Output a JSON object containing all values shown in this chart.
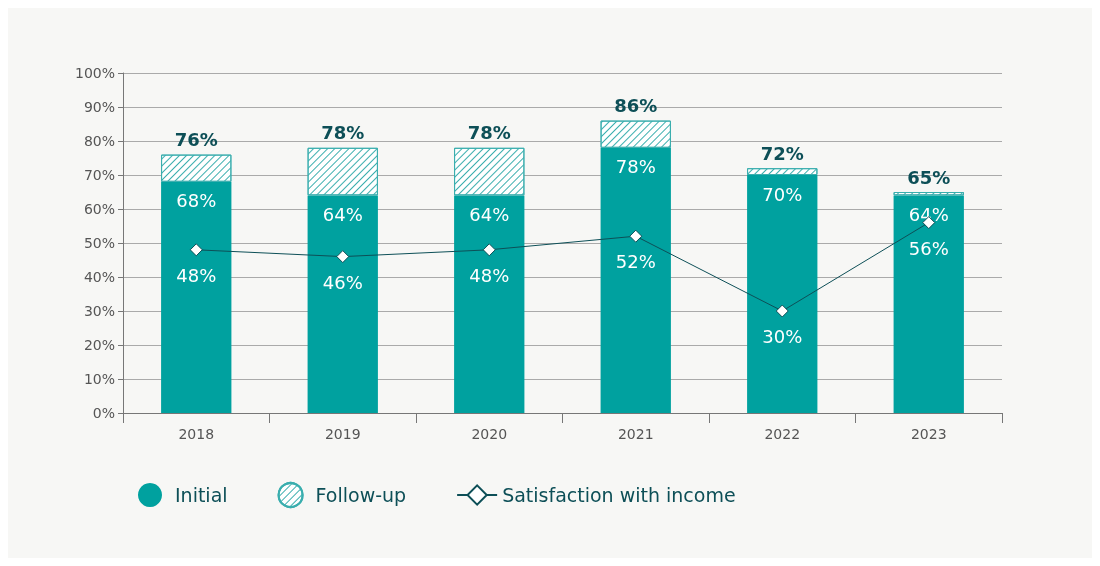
{
  "chart_data": {
    "type": "bar",
    "stacked": true,
    "categories": [
      "2018",
      "2019",
      "2020",
      "2021",
      "2022",
      "2023"
    ],
    "series": [
      {
        "name": "Initial",
        "color": "#00a19f",
        "values": [
          68,
          64,
          64,
          78,
          70,
          64
        ],
        "value_labels": [
          "68%",
          "64%",
          "64%",
          "78%",
          "70%",
          "64%"
        ]
      },
      {
        "name": "Follow-up",
        "color": "#3aaeae",
        "values": [
          8,
          14,
          14,
          8,
          2,
          1
        ]
      },
      {
        "name": "Satisfaction with income",
        "type": "line",
        "color": "#0d4f57",
        "marker": "diamond",
        "values": [
          48,
          46,
          48,
          52,
          30,
          56
        ],
        "value_labels": [
          "48%",
          "46%",
          "48%",
          "52%",
          "30%",
          "56%"
        ]
      }
    ],
    "totals": [
      "76%",
      "78%",
      "78%",
      "86%",
      "72%",
      "65%"
    ],
    "ylim": [
      0,
      100
    ],
    "yticks": [
      {
        "value": 0,
        "label": "0%"
      },
      {
        "value": 10,
        "label": "10%"
      },
      {
        "value": 20,
        "label": "20%"
      },
      {
        "value": 30,
        "label": "30%"
      },
      {
        "value": 40,
        "label": "40%"
      },
      {
        "value": 50,
        "label": "50%"
      },
      {
        "value": 60,
        "label": "60%"
      },
      {
        "value": 70,
        "label": "70%"
      },
      {
        "value": 80,
        "label": "80%"
      },
      {
        "value": 90,
        "label": "90%"
      },
      {
        "value": 100,
        "label": "100%"
      }
    ],
    "grid": "y",
    "legend": "bottom left"
  }
}
